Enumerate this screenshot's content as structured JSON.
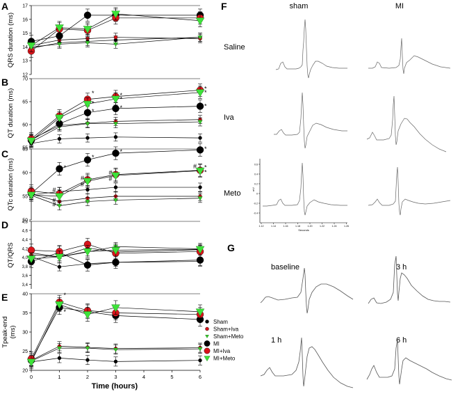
{
  "figure": {
    "panel_letters": [
      "A",
      "B",
      "C",
      "D",
      "E",
      "F",
      "G"
    ],
    "x_axis_title": "Time (hours)",
    "x_ticks": [
      0,
      1,
      2,
      3,
      4,
      5,
      6
    ],
    "legend": [
      {
        "name": "Sham",
        "color": "#000000",
        "marker": "circle-small"
      },
      {
        "name": "Sham+Iva",
        "color": "#d9141a",
        "marker": "circle-small"
      },
      {
        "name": "Sham+Meto",
        "color": "#35c62a",
        "marker": "triangle-small"
      },
      {
        "name": "MI",
        "color": "#000000",
        "marker": "circle-large"
      },
      {
        "name": "MI+Iva",
        "color": "#d9141a",
        "marker": "circle-large"
      },
      {
        "name": "MI+Meto",
        "color": "#3de23a",
        "marker": "triangle-large"
      }
    ],
    "panel_f": {
      "col_labels": [
        "sham",
        "MI"
      ],
      "row_labels": [
        "Saline",
        "Iva",
        "Meto"
      ],
      "inset_x_ticks": [
        "1.12",
        "1.14",
        "1.16",
        "1.18",
        "1.20",
        "1.22",
        "1.24",
        "1.26"
      ],
      "inset_y_ticks": [
        "0.6",
        "0.4",
        "0.2",
        "0",
        "-0.2",
        "-0.4"
      ],
      "inset_x_label": "Seconds",
      "inset_y_label": "mV"
    },
    "panel_g": {
      "labels": [
        "baseline",
        "3 h",
        "1 h",
        "6 h"
      ]
    }
  },
  "chart_data": [
    {
      "type": "line",
      "panel": "A",
      "ylabel": "QRS duration (ms)",
      "ylim": [
        12,
        17
      ],
      "yticks": [
        12,
        13,
        14,
        15,
        16,
        17
      ],
      "x": [
        0,
        1,
        2,
        3,
        6
      ],
      "series": [
        {
          "name": "Sham",
          "values": [
            13.9,
            14.3,
            14.4,
            14.5,
            14.7
          ]
        },
        {
          "name": "Sham+Iva",
          "values": [
            14.1,
            14.5,
            14.6,
            14.7,
            14.6
          ]
        },
        {
          "name": "Sham+Meto",
          "values": [
            14.0,
            14.2,
            14.3,
            14.2,
            14.7
          ]
        },
        {
          "name": "MI",
          "values": [
            14.4,
            14.8,
            16.3,
            16.3,
            16.3
          ]
        },
        {
          "name": "MI+Iva",
          "values": [
            13.7,
            15.3,
            15.2,
            16.1,
            16.1
          ]
        },
        {
          "name": "MI+Meto",
          "values": [
            14.1,
            15.4,
            15.3,
            16.4,
            15.9
          ]
        }
      ],
      "annotations": []
    },
    {
      "type": "line",
      "panel": "B",
      "ylabel": "QT duration (ms)",
      "ylim": [
        55,
        70
      ],
      "yticks": [
        55,
        60,
        65,
        70
      ],
      "x": [
        0,
        1,
        2,
        3,
        6
      ],
      "series": [
        {
          "name": "Sham",
          "values": [
            55.9,
            56.9,
            57.1,
            57.3,
            57.1
          ]
        },
        {
          "name": "Sham+Iva",
          "values": [
            56.8,
            59.8,
            60.3,
            60.7,
            61.1
          ]
        },
        {
          "name": "Sham+Meto",
          "values": [
            56.2,
            59.5,
            60.2,
            60.2,
            60.6
          ]
        },
        {
          "name": "MI",
          "values": [
            56.6,
            60.2,
            62.6,
            63.5,
            64.0
          ]
        },
        {
          "name": "MI+Iva",
          "values": [
            56.9,
            61.9,
            65.5,
            66.1,
            67.5
          ]
        },
        {
          "name": "MI+Meto",
          "values": [
            56.5,
            61.5,
            64.5,
            65.6,
            67.0
          ]
        }
      ],
      "annotations": [
        "*",
        "*",
        "*",
        "*",
        "*",
        "*",
        "*",
        "*",
        "*"
      ]
    },
    {
      "type": "line",
      "panel": "C",
      "ylabel": "QTc duration (ms)",
      "ylim": [
        50,
        65
      ],
      "yticks": [
        50,
        55,
        60,
        65
      ],
      "x": [
        0,
        1,
        2,
        3,
        6
      ],
      "series": [
        {
          "name": "Sham",
          "values": [
            55.3,
            56.0,
            56.4,
            56.9,
            56.9
          ]
        },
        {
          "name": "Sham+Iva",
          "values": [
            55.5,
            53.9,
            54.6,
            55.0,
            55.0
          ]
        },
        {
          "name": "Sham+Meto",
          "values": [
            55.2,
            53.0,
            53.9,
            54.2,
            54.6
          ]
        },
        {
          "name": "MI",
          "values": [
            55.6,
            60.8,
            62.7,
            64.1,
            64.8
          ]
        },
        {
          "name": "MI+Iva",
          "values": [
            56.1,
            55.5,
            58.5,
            59.6,
            60.5
          ]
        },
        {
          "name": "MI+Meto",
          "values": [
            55.3,
            55.0,
            58.2,
            59.4,
            60.4
          ]
        }
      ],
      "annotations": [
        "*",
        "*",
        "*",
        "*",
        "*",
        "*",
        "#",
        "#",
        "#",
        "#",
        "#",
        "#",
        "#",
        "#"
      ]
    },
    {
      "type": "line",
      "panel": "D",
      "ylabel": "QT/QRS",
      "ylim": [
        3.3,
        4.8
      ],
      "yticks": [
        3.4,
        3.6,
        3.8,
        4.0,
        4.2,
        4.4,
        4.6,
        4.8
      ],
      "ytick_labels": [
        "3,4",
        "3,6",
        "3,8",
        "4,0",
        "4,2",
        "4,4",
        "4,6",
        "4,8"
      ],
      "x": [
        0,
        1,
        2,
        3,
        6
      ],
      "series": [
        {
          "name": "Sham",
          "values": [
            4.02,
            3.79,
            3.86,
            3.89,
            3.91
          ]
        },
        {
          "name": "Sham+Iva",
          "values": [
            4.06,
            4.01,
            4.21,
            4.12,
            4.17
          ]
        },
        {
          "name": "Sham+Meto",
          "values": [
            4.1,
            4.01,
            4.12,
            4.24,
            4.19
          ]
        },
        {
          "name": "MI",
          "values": [
            3.91,
            4.11,
            3.83,
            3.89,
            3.94
          ]
        },
        {
          "name": "MI+Iva",
          "values": [
            4.16,
            4.13,
            4.29,
            4.09,
            4.13
          ]
        },
        {
          "name": "MI+Meto",
          "values": [
            3.97,
            4.01,
            4.13,
            4.16,
            4.18
          ]
        }
      ],
      "annotations": []
    },
    {
      "type": "line",
      "panel": "E",
      "ylabel": "Tpeak-end (ms)",
      "ylim": [
        20,
        40
      ],
      "yticks": [
        20,
        25,
        30,
        35,
        40
      ],
      "x": [
        0,
        1,
        2,
        3,
        6
      ],
      "series": [
        {
          "name": "Sham",
          "values": [
            22.2,
            23.2,
            22.7,
            22.3,
            22.6
          ]
        },
        {
          "name": "Sham+Iva",
          "values": [
            22.6,
            26.3,
            26.0,
            25.7,
            25.9
          ]
        },
        {
          "name": "Sham+Meto",
          "values": [
            22.4,
            25.8,
            25.8,
            25.4,
            25.6
          ]
        },
        {
          "name": "MI",
          "values": [
            22.6,
            36.4,
            35.3,
            34.3,
            33.3
          ]
        },
        {
          "name": "MI+Iva",
          "values": [
            23.0,
            37.8,
            35.6,
            35.0,
            34.6
          ]
        },
        {
          "name": "MI+Meto",
          "values": [
            22.2,
            37.2,
            34.6,
            36.4,
            35.3
          ]
        }
      ],
      "annotations": [
        "*",
        "*"
      ]
    }
  ]
}
